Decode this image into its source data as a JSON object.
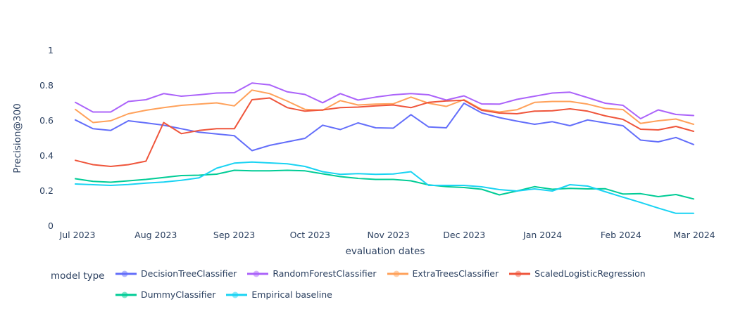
{
  "figure": {
    "background": "#ffffff",
    "text_color": "#2a3f5f"
  },
  "legend": {
    "title": "model type"
  },
  "chart_data": {
    "type": "line",
    "title": "",
    "xlabel": "evaluation dates",
    "ylabel": "Precision@300",
    "grid": false,
    "legend_position": "bottom",
    "ylim": [
      0,
      1
    ],
    "y_ticks": [
      "0",
      "0.2",
      "0.4",
      "0.6",
      "0.8",
      "1"
    ],
    "y_tick_values": [
      0,
      0.2,
      0.4,
      0.6,
      0.8,
      1
    ],
    "x_ticks": [
      "Jul 2023",
      "Aug 2023",
      "Sep 2023",
      "Oct 2023",
      "Nov 2023",
      "Dec 2023",
      "Jan 2024",
      "Feb 2024",
      "Mar 2024"
    ],
    "x": [
      "2023-07-02",
      "2023-07-09",
      "2023-07-16",
      "2023-07-23",
      "2023-07-30",
      "2023-08-06",
      "2023-08-13",
      "2023-08-20",
      "2023-08-27",
      "2023-09-03",
      "2023-09-10",
      "2023-09-17",
      "2023-09-24",
      "2023-10-01",
      "2023-10-08",
      "2023-10-15",
      "2023-10-22",
      "2023-10-29",
      "2023-11-05",
      "2023-11-12",
      "2023-11-19",
      "2023-11-26",
      "2023-12-03",
      "2023-12-10",
      "2023-12-17",
      "2023-12-24",
      "2023-12-31",
      "2024-01-07",
      "2024-01-14",
      "2024-01-21",
      "2024-01-28",
      "2024-02-04",
      "2024-02-11",
      "2024-02-18",
      "2024-02-25",
      "2024-03-03"
    ],
    "series": [
      {
        "name": "DecisionTreeClassifier",
        "color": "#636efa",
        "values": [
          0.605,
          0.555,
          0.545,
          0.6,
          0.588,
          0.575,
          0.555,
          0.535,
          0.525,
          0.515,
          0.43,
          0.46,
          0.48,
          0.5,
          0.575,
          0.55,
          0.588,
          0.56,
          0.558,
          0.635,
          0.565,
          0.56,
          0.7,
          0.645,
          0.618,
          0.598,
          0.58,
          0.595,
          0.572,
          0.605,
          0.588,
          0.572,
          0.49,
          0.48,
          0.505,
          0.465
        ]
      },
      {
        "name": "RandomForestClassifier",
        "color": "#ab63fa",
        "values": [
          0.705,
          0.65,
          0.65,
          0.71,
          0.72,
          0.755,
          0.74,
          0.748,
          0.758,
          0.76,
          0.815,
          0.805,
          0.765,
          0.75,
          0.703,
          0.755,
          0.718,
          0.735,
          0.748,
          0.755,
          0.748,
          0.718,
          0.742,
          0.696,
          0.695,
          0.722,
          0.74,
          0.758,
          0.763,
          0.732,
          0.7,
          0.688,
          0.612,
          0.662,
          0.636,
          0.63
        ]
      },
      {
        "name": "ExtraTreesClassifier",
        "color": "#ffa15a",
        "values": [
          0.665,
          0.59,
          0.6,
          0.64,
          0.66,
          0.675,
          0.688,
          0.695,
          0.702,
          0.685,
          0.775,
          0.755,
          0.712,
          0.665,
          0.66,
          0.715,
          0.69,
          0.695,
          0.697,
          0.735,
          0.7,
          0.682,
          0.72,
          0.665,
          0.65,
          0.663,
          0.705,
          0.71,
          0.71,
          0.695,
          0.67,
          0.664,
          0.585,
          0.6,
          0.61,
          0.58
        ]
      },
      {
        "name": "ScaledLogisticRegression",
        "color": "#ef553b",
        "values": [
          0.375,
          0.35,
          0.34,
          0.35,
          0.37,
          0.59,
          0.527,
          0.545,
          0.555,
          0.555,
          0.72,
          0.73,
          0.675,
          0.655,
          0.662,
          0.675,
          0.678,
          0.685,
          0.69,
          0.675,
          0.705,
          0.713,
          0.717,
          0.66,
          0.644,
          0.64,
          0.655,
          0.657,
          0.668,
          0.655,
          0.628,
          0.608,
          0.552,
          0.548,
          0.568,
          0.54
        ]
      },
      {
        "name": "DummyClassifier",
        "color": "#00cc96",
        "values": [
          0.27,
          0.255,
          0.25,
          0.258,
          0.266,
          0.277,
          0.288,
          0.29,
          0.296,
          0.318,
          0.315,
          0.315,
          0.318,
          0.315,
          0.298,
          0.282,
          0.272,
          0.266,
          0.266,
          0.258,
          0.235,
          0.225,
          0.22,
          0.21,
          0.178,
          0.2,
          0.225,
          0.21,
          0.215,
          0.212,
          0.213,
          0.183,
          0.185,
          0.168,
          0.18,
          0.155
        ]
      },
      {
        "name": "Empirical baseline",
        "color": "#19d3f3",
        "values": [
          0.24,
          0.236,
          0.232,
          0.237,
          0.245,
          0.251,
          0.261,
          0.275,
          0.33,
          0.359,
          0.365,
          0.36,
          0.355,
          0.34,
          0.31,
          0.295,
          0.299,
          0.295,
          0.297,
          0.31,
          0.232,
          0.232,
          0.232,
          0.224,
          0.208,
          0.2,
          0.212,
          0.2,
          0.236,
          0.228,
          0.196,
          0.165,
          0.135,
          0.103,
          0.073,
          0.073
        ]
      }
    ]
  }
}
